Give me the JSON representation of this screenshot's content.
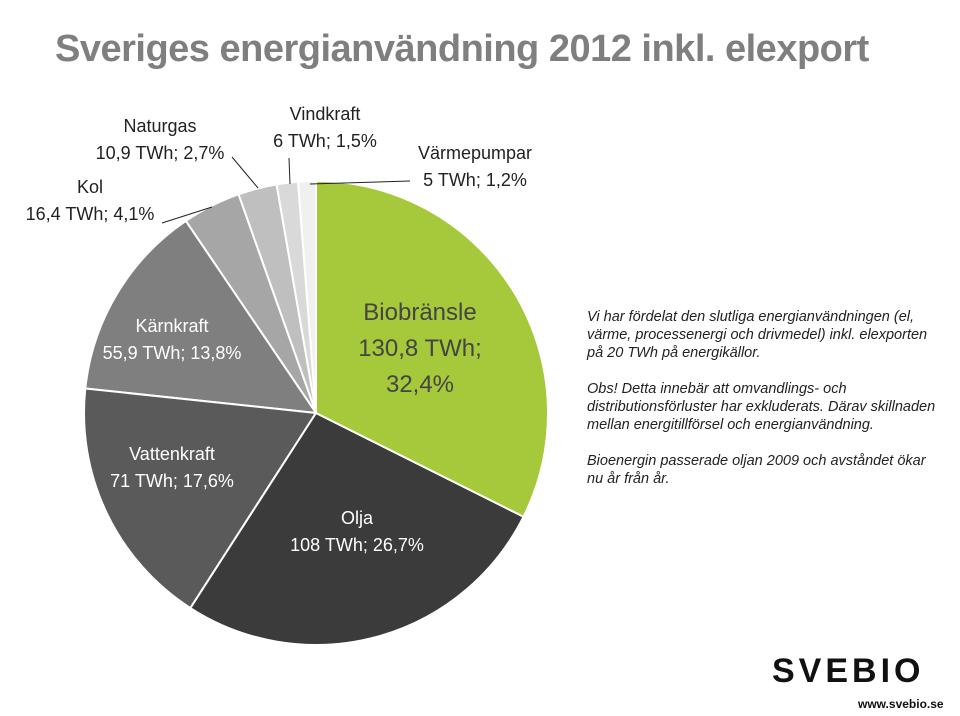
{
  "chart_data": {
    "type": "pie",
    "title": "Sveriges energianvändning 2012 inkl. elexport",
    "categories": [
      "Biobränsle",
      "Olja",
      "Vattenkraft",
      "Kärnkraft",
      "Kol",
      "Naturgas",
      "Vindkraft",
      "Värmepumpar"
    ],
    "values": [
      130.8,
      108,
      71,
      55.9,
      16.4,
      10.9,
      6,
      5
    ],
    "value_labels": [
      "130,8 TWh; 32,4%",
      "108 TWh; 26,7%",
      "71 TWh; 17,6%",
      "55,9 TWh; 13,8%",
      "16,4 TWh; 4,1%",
      "10,9 TWh; 2,7%",
      "6 TWh; 1,5%",
      "5 TWh; 1,2%"
    ],
    "colors": [
      "#a5c93a",
      "#3b3b3b",
      "#5a5a5a",
      "#7f7f7f",
      "#a6a6a6",
      "#bfbfbf",
      "#d9d9d9",
      "#f0f0f0"
    ]
  },
  "notes": [
    "Vi har fördelat den slutliga energianvändningen (el, värme, processenergi och drivmedel) inkl. elexporten på 20 TWh på energikällor.",
    "Obs! Detta innebär att omvandlings- och distributionsförluster har exkluderats. Därav skillnaden mellan energitillförsel och energianvändning.",
    "Bioenergin passerade oljan 2009 och avståndet ökar nu år från år."
  ],
  "logo": "SVEBIO",
  "url": "www.svebio.se"
}
